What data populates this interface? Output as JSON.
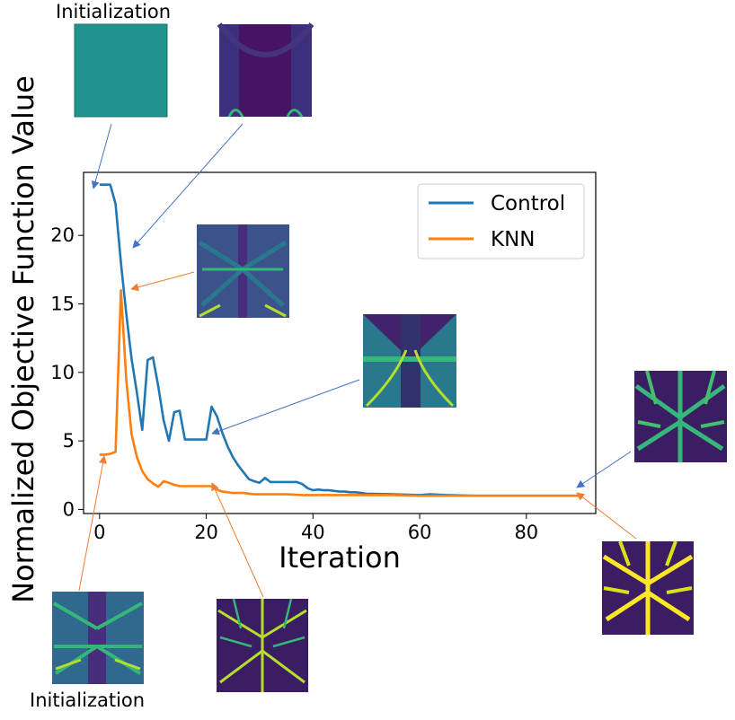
{
  "chart_data": {
    "type": "line",
    "xlabel": "Iteration",
    "ylabel": "Normalized Objective Function Value",
    "xlim": [
      -3,
      93
    ],
    "ylim": [
      -0.3,
      24.6
    ],
    "x_ticks": [
      0,
      20,
      40,
      60,
      80
    ],
    "y_ticks": [
      0,
      5,
      10,
      15,
      20
    ],
    "legend_position": "top-right",
    "grid": false,
    "series": [
      {
        "name": "Control",
        "color": "#1f77b4",
        "x": [
          0,
          1,
          2,
          3,
          4,
          5,
          6,
          7,
          8,
          9,
          10,
          11,
          12,
          13,
          14,
          15,
          16,
          17,
          18,
          19,
          20,
          21,
          22,
          23,
          24,
          25,
          26,
          27,
          28,
          29,
          30,
          31,
          32,
          33,
          34,
          35,
          36,
          37,
          38,
          39,
          40,
          41,
          42,
          43,
          44,
          45,
          46,
          47,
          48,
          49,
          50,
          55,
          60,
          62,
          65,
          70,
          75,
          80,
          85,
          90
        ],
        "values": [
          23.7,
          23.7,
          23.7,
          22.3,
          18.0,
          14.3,
          11.0,
          8.5,
          5.8,
          10.9,
          11.1,
          9.0,
          6.5,
          5.0,
          7.1,
          7.2,
          5.1,
          5.1,
          5.1,
          5.1,
          5.1,
          7.5,
          6.8,
          5.6,
          4.6,
          3.8,
          3.2,
          2.7,
          2.2,
          2.05,
          1.95,
          2.3,
          2.0,
          2.0,
          2.0,
          2.0,
          2.0,
          2.0,
          1.85,
          1.55,
          1.4,
          1.45,
          1.4,
          1.4,
          1.35,
          1.3,
          1.3,
          1.25,
          1.25,
          1.2,
          1.15,
          1.1,
          1.05,
          1.1,
          1.05,
          1.0,
          1.0,
          1.0,
          1.0,
          1.0
        ]
      },
      {
        "name": "KNN",
        "color": "#ff7f0e",
        "x": [
          0,
          1,
          2,
          3,
          4,
          5,
          6,
          7,
          8,
          9,
          10,
          11,
          12,
          13,
          14,
          15,
          16,
          17,
          18,
          19,
          20,
          21,
          22,
          23,
          24,
          25,
          26,
          27,
          28,
          29,
          30,
          32,
          35,
          38,
          40,
          45,
          50,
          55,
          60,
          65,
          70,
          75,
          80,
          85,
          90
        ],
        "values": [
          4.0,
          4.0,
          4.05,
          4.2,
          16.0,
          9.5,
          5.5,
          3.8,
          2.8,
          2.2,
          1.9,
          1.65,
          2.05,
          1.95,
          1.8,
          1.7,
          1.7,
          1.7,
          1.7,
          1.7,
          1.7,
          1.7,
          1.45,
          1.3,
          1.25,
          1.2,
          1.2,
          1.2,
          1.15,
          1.1,
          1.1,
          1.1,
          1.1,
          1.05,
          1.05,
          1.05,
          1.05,
          1.05,
          1.0,
          1.0,
          1.0,
          1.0,
          1.0,
          1.0,
          1.0
        ]
      }
    ]
  },
  "annotations": {
    "init_top": "Initialization",
    "init_bottom": "Initialization"
  }
}
